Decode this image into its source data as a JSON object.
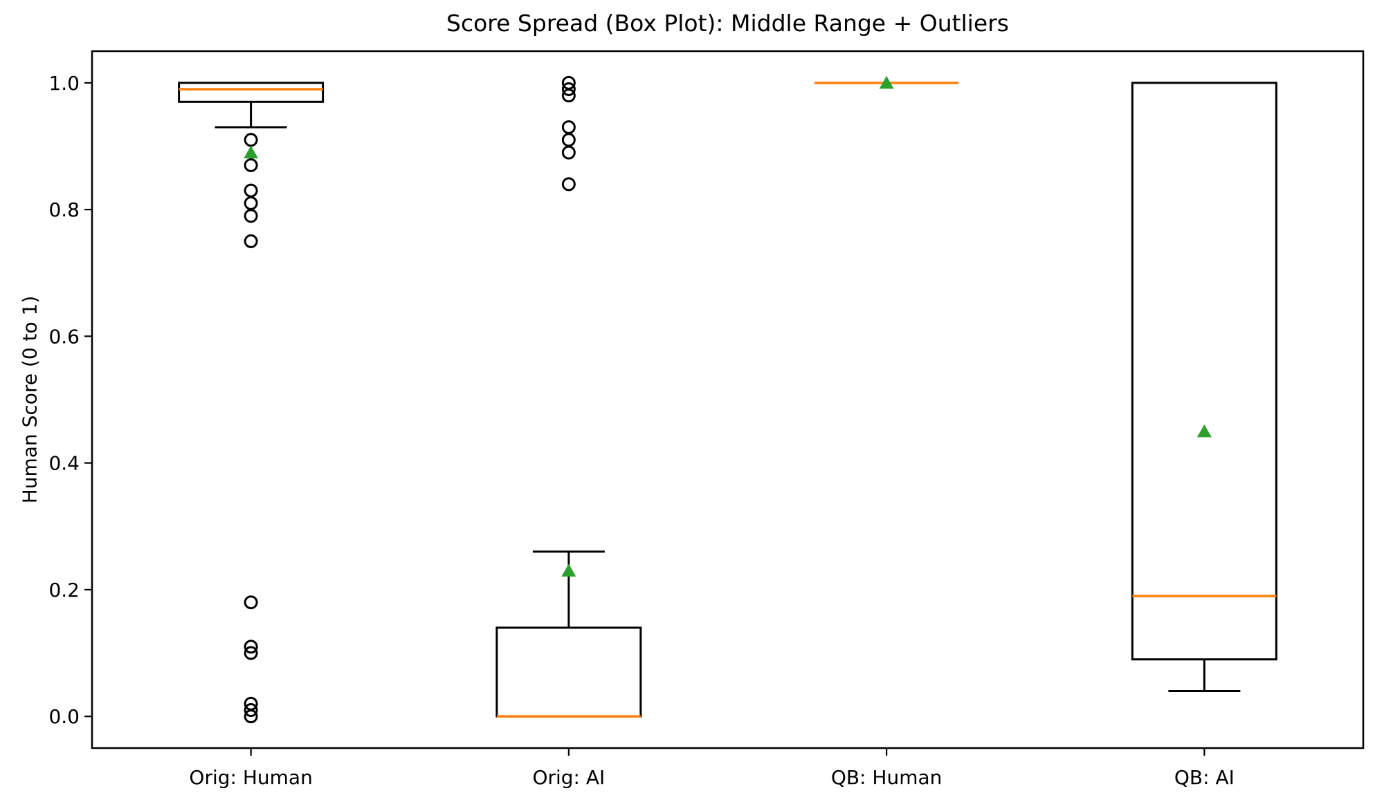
{
  "chart_data": {
    "type": "boxplot",
    "title": "Score Spread (Box Plot): Middle Range + Outliers",
    "xlabel": "",
    "ylabel": "Human Score (0 to 1)",
    "ylim": [
      -0.05,
      1.05
    ],
    "grid": false,
    "legend": "none",
    "yticks": [
      {
        "value": 0.0,
        "label": "0.0"
      },
      {
        "value": 0.2,
        "label": "0.2"
      },
      {
        "value": 0.4,
        "label": "0.4"
      },
      {
        "value": 0.6,
        "label": "0.6"
      },
      {
        "value": 0.8,
        "label": "0.8"
      },
      {
        "value": 1.0,
        "label": "1.0"
      }
    ],
    "categories": [
      "Orig: Human",
      "Orig: AI",
      "QB: Human",
      "QB: AI"
    ],
    "mean_marker": "triangle-up",
    "outlier_marker": "open-circle",
    "boxes": [
      {
        "category": "Orig: Human",
        "whisker_low": 0.93,
        "q1": 0.97,
        "median": 0.99,
        "q3": 1.0,
        "whisker_high": 1.0,
        "mean": 0.89,
        "outliers": [
          0.91,
          0.87,
          0.83,
          0.81,
          0.79,
          0.75,
          0.18,
          0.11,
          0.1,
          0.02,
          0.01,
          0.0
        ]
      },
      {
        "category": "Orig: AI",
        "whisker_low": 0.0,
        "q1": 0.0,
        "median": 0.0,
        "q3": 0.14,
        "whisker_high": 0.26,
        "mean": 0.23,
        "outliers": [
          1.0,
          0.99,
          0.98,
          0.93,
          0.91,
          0.89,
          0.84
        ]
      },
      {
        "category": "QB: Human",
        "whisker_low": 1.0,
        "q1": 1.0,
        "median": 1.0,
        "q3": 1.0,
        "whisker_high": 1.0,
        "mean": 1.0,
        "outliers": []
      },
      {
        "category": "QB: AI",
        "whisker_low": 0.04,
        "q1": 0.09,
        "median": 0.19,
        "q3": 1.0,
        "whisker_high": 1.0,
        "mean": 0.45,
        "outliers": []
      }
    ],
    "colors": {
      "background": "#ffffff",
      "box_edge": "#000000",
      "median": "#ff7f0e",
      "mean": "#2ca02c",
      "outlier_edge": "#000000",
      "axis": "#000000"
    }
  }
}
